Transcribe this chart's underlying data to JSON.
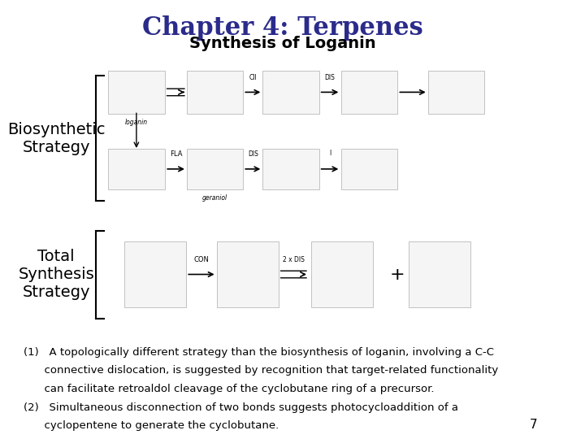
{
  "title": "Chapter 4: Terpenes",
  "subtitle": "Synthesis of Loganin",
  "title_color": "#2B2B8B",
  "subtitle_color": "#000000",
  "title_fontsize": 22,
  "subtitle_fontsize": 14,
  "biosynthetic_label": "Biosynthetic\nStrategy",
  "total_synthesis_label": "Total\nSynthesis\nStrategy",
  "label_fontsize": 14,
  "bracket_color": "#000000",
  "text_block_1": "(1)   A topologically different strategy than the biosynthesis of loganin, involving a C-C\n      connective dislocation, is suggested by recognition that target-related functionality\n      can facilitate retroaldol cleavage of the cyclobutane ring of a precursor.",
  "text_block_2": "(2)   Simultaneous disconnection of two bonds suggests photocycloaddition of a\n      cyclopentene to generate the cyclobutane.",
  "text_fontsize": 9.5,
  "page_number": "7",
  "bg_color": "#FFFFFF"
}
